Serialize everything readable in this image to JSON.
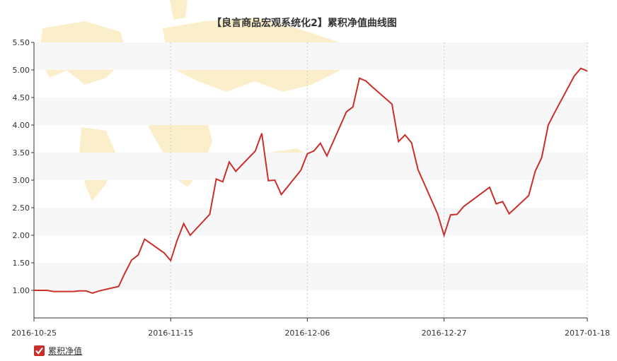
{
  "colors": {
    "line": "#c9302c",
    "band": "#f7f7f7",
    "axis": "#333333",
    "grid_dashed": "#cccccc",
    "map": "#f7e2a0"
  },
  "legend": {
    "icon": "checkbox-checked-icon",
    "label": "累积净值"
  },
  "chart_data": {
    "type": "line",
    "title": "【良言商品宏观系统化2】累积净值曲线图",
    "xlabel": "",
    "ylabel": "",
    "ylim": [
      0.5,
      5.5
    ],
    "y_ticks": [
      "1.00",
      "1.50",
      "2.00",
      "2.50",
      "3.00",
      "3.50",
      "4.00",
      "4.50",
      "5.00",
      "5.50"
    ],
    "x_ticks": [
      "2016-10-25",
      "2016-11-15",
      "2016-12-06",
      "2016-12-27",
      "2017-01-18"
    ],
    "grid": "horizontal alternating bands, dashed vertical lines at x ticks",
    "legend_position": "bottom-left",
    "series": [
      {
        "name": "累积净值",
        "x": [
          "2016-10-25",
          "2016-10-26",
          "2016-10-27",
          "2016-10-28",
          "2016-10-31",
          "2016-11-01",
          "2016-11-02",
          "2016-11-03",
          "2016-11-04",
          "2016-11-07",
          "2016-11-08",
          "2016-11-09",
          "2016-11-10",
          "2016-11-11",
          "2016-11-14",
          "2016-11-15",
          "2016-11-16",
          "2016-11-17",
          "2016-11-18",
          "2016-11-21",
          "2016-11-22",
          "2016-11-23",
          "2016-11-24",
          "2016-11-25",
          "2016-11-28",
          "2016-11-29",
          "2016-11-30",
          "2016-12-01",
          "2016-12-02",
          "2016-12-05",
          "2016-12-06",
          "2016-12-07",
          "2016-12-08",
          "2016-12-09",
          "2016-12-12",
          "2016-12-13",
          "2016-12-14",
          "2016-12-15",
          "2016-12-16",
          "2016-12-19",
          "2016-12-20",
          "2016-12-21",
          "2016-12-22",
          "2016-12-23",
          "2016-12-26",
          "2016-12-27",
          "2016-12-28",
          "2016-12-29",
          "2016-12-30",
          "2017-01-03",
          "2017-01-04",
          "2017-01-05",
          "2017-01-06",
          "2017-01-09",
          "2017-01-10",
          "2017-01-11",
          "2017-01-12",
          "2017-01-13",
          "2017-01-16",
          "2017-01-17",
          "2017-01-18"
        ],
        "values": [
          1.0,
          1.0,
          1.0,
          0.98,
          0.98,
          0.99,
          0.99,
          0.95,
          0.99,
          1.07,
          1.32,
          1.55,
          1.64,
          1.93,
          1.68,
          1.54,
          1.91,
          2.21,
          2.0,
          2.38,
          3.02,
          2.97,
          3.33,
          3.16,
          3.53,
          3.85,
          2.99,
          3.0,
          2.74,
          3.18,
          3.48,
          3.53,
          3.67,
          3.44,
          4.24,
          4.33,
          4.85,
          4.8,
          4.69,
          4.38,
          3.7,
          3.82,
          3.68,
          3.19,
          2.39,
          2.0,
          2.37,
          2.38,
          2.52,
          2.87,
          2.57,
          2.61,
          2.39,
          2.72,
          3.16,
          3.41,
          4.0,
          4.23,
          4.89,
          5.03,
          4.98
        ]
      }
    ]
  }
}
